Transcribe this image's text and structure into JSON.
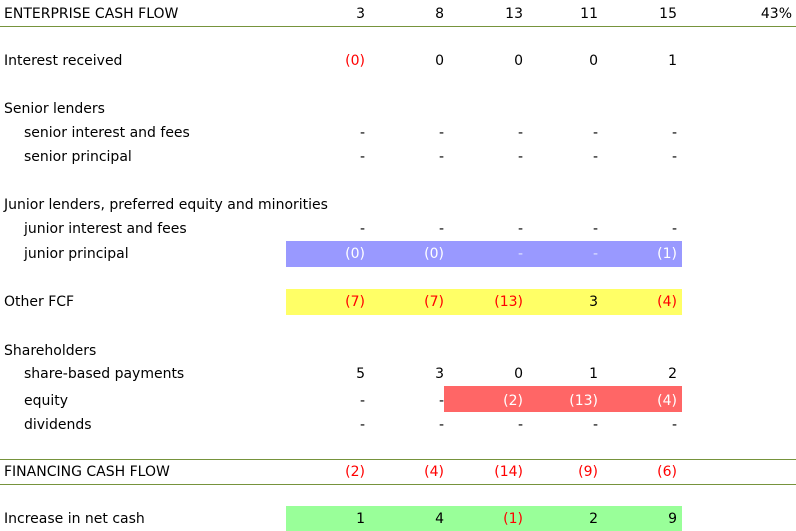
{
  "enterprise": {
    "label": "ENTERPRISE CASH FLOW",
    "values": [
      "3",
      "8",
      "13",
      "11",
      "15"
    ],
    "pct": "43%"
  },
  "interest": {
    "label": "Interest received",
    "values": [
      "(0)",
      "0",
      "0",
      "0",
      "1"
    ]
  },
  "senior": {
    "heading": "Senior lenders",
    "interest_fees": {
      "label": "senior interest and fees",
      "values": [
        "-",
        "-",
        "-",
        "-",
        "-"
      ]
    },
    "principal": {
      "label": "senior principal",
      "values": [
        "-",
        "-",
        "-",
        "-",
        "-"
      ]
    }
  },
  "junior": {
    "heading": "Junior lenders, preferred equity and minorities",
    "interest_fees": {
      "label": "junior interest and fees",
      "values": [
        "-",
        "-",
        "-",
        "-",
        "-"
      ]
    },
    "principal": {
      "label": "junior principal",
      "values": [
        "(0)",
        "(0)",
        "-",
        "-",
        "(1)"
      ]
    }
  },
  "other_fcf": {
    "label": "Other FCF",
    "values": [
      "(7)",
      "(7)",
      "(13)",
      "3",
      "(4)"
    ]
  },
  "shareholders": {
    "heading": "Shareholders",
    "share_based": {
      "label": "share-based payments",
      "values": [
        "5",
        "3",
        "0",
        "1",
        "2"
      ]
    },
    "equity": {
      "label": "equity",
      "values": [
        "-",
        "-",
        "(2)",
        "(13)",
        "(4)"
      ]
    },
    "dividends": {
      "label": "dividends",
      "values": [
        "-",
        "-",
        "-",
        "-",
        "-"
      ]
    }
  },
  "financing": {
    "label": "FINANCING CASH FLOW",
    "values": [
      "(2)",
      "(4)",
      "(14)",
      "(9)",
      "(6)"
    ]
  },
  "increase": {
    "label": "Increase in net cash",
    "values": [
      "1",
      "4",
      "(1)",
      "2",
      "9"
    ]
  },
  "colors": {
    "blue_band": "#9999ff",
    "yellow_band": "#ffff66",
    "red_band": "#ff6666",
    "green_band": "#99ff99",
    "negative": "#ff0000",
    "rule": "#76933c"
  }
}
